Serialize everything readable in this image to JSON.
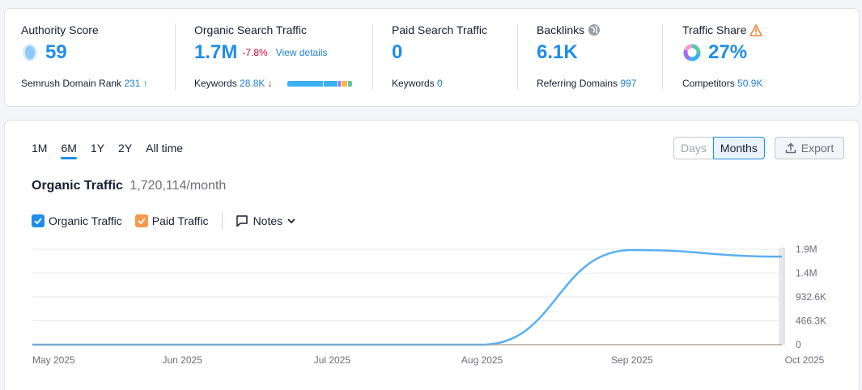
{
  "stats": {
    "authority": {
      "label": "Authority Score",
      "value": "59",
      "sub_label": "Semrush Domain Rank",
      "sub_value": "231",
      "sub_arrow": "↑"
    },
    "organic": {
      "label": "Organic Search Traffic",
      "value": "1.7M",
      "delta": "-7.8%",
      "link": "View details",
      "sub_label": "Keywords",
      "sub_value": "28.8K",
      "sub_arrow": "↓"
    },
    "paid": {
      "label": "Paid Search Traffic",
      "value": "0",
      "sub_label": "Keywords",
      "sub_value": "0"
    },
    "backlinks": {
      "label": "Backlinks",
      "value": "6.1K",
      "sub_label": "Referring Domains",
      "sub_value": "997"
    },
    "traffic_share": {
      "label": "Traffic Share",
      "value": "27%",
      "sub_label": "Competitors",
      "sub_value": "50.9K"
    }
  },
  "keyword_bar_colors": [
    "#3ab1f0",
    "#3ab1f0",
    "#9f6cf0",
    "#f6b84d",
    "#59c9a5"
  ],
  "keyword_bar_shares": [
    0.55,
    0.22,
    0.06,
    0.1,
    0.07
  ],
  "range_tabs": [
    "1M",
    "6M",
    "1Y",
    "2Y",
    "All time"
  ],
  "active_range": "6M",
  "granularity": {
    "days": "Days",
    "months": "Months"
  },
  "export_label": "Export",
  "chart_header": {
    "title": "Organic Traffic",
    "value": "1,720,114/month"
  },
  "legend": {
    "organic": "Organic Traffic",
    "paid": "Paid Traffic",
    "notes": "Notes"
  },
  "colors": {
    "accent": "#1f8ee8",
    "organic": "#5aaff0",
    "paid": "#f59a4c",
    "negative": "#d1002f",
    "positive": "#0aa06e"
  },
  "chart_data": {
    "type": "line",
    "x": [
      "May 2025",
      "Jun 2025",
      "Jul 2025",
      "Aug 2025",
      "Sep 2025",
      "Oct 2025"
    ],
    "series": [
      {
        "name": "Organic Traffic",
        "values": [
          0,
          0,
          0,
          0,
          1850000,
          1720114
        ]
      },
      {
        "name": "Paid Traffic",
        "values": [
          0,
          0,
          0,
          0,
          0,
          0
        ]
      }
    ],
    "ytick_labels": [
      "0",
      "466.3K",
      "932.6K",
      "1.4M",
      "1.9M"
    ],
    "ylim": [
      0,
      1865200
    ],
    "grid": true,
    "legend_position": "top-left"
  }
}
